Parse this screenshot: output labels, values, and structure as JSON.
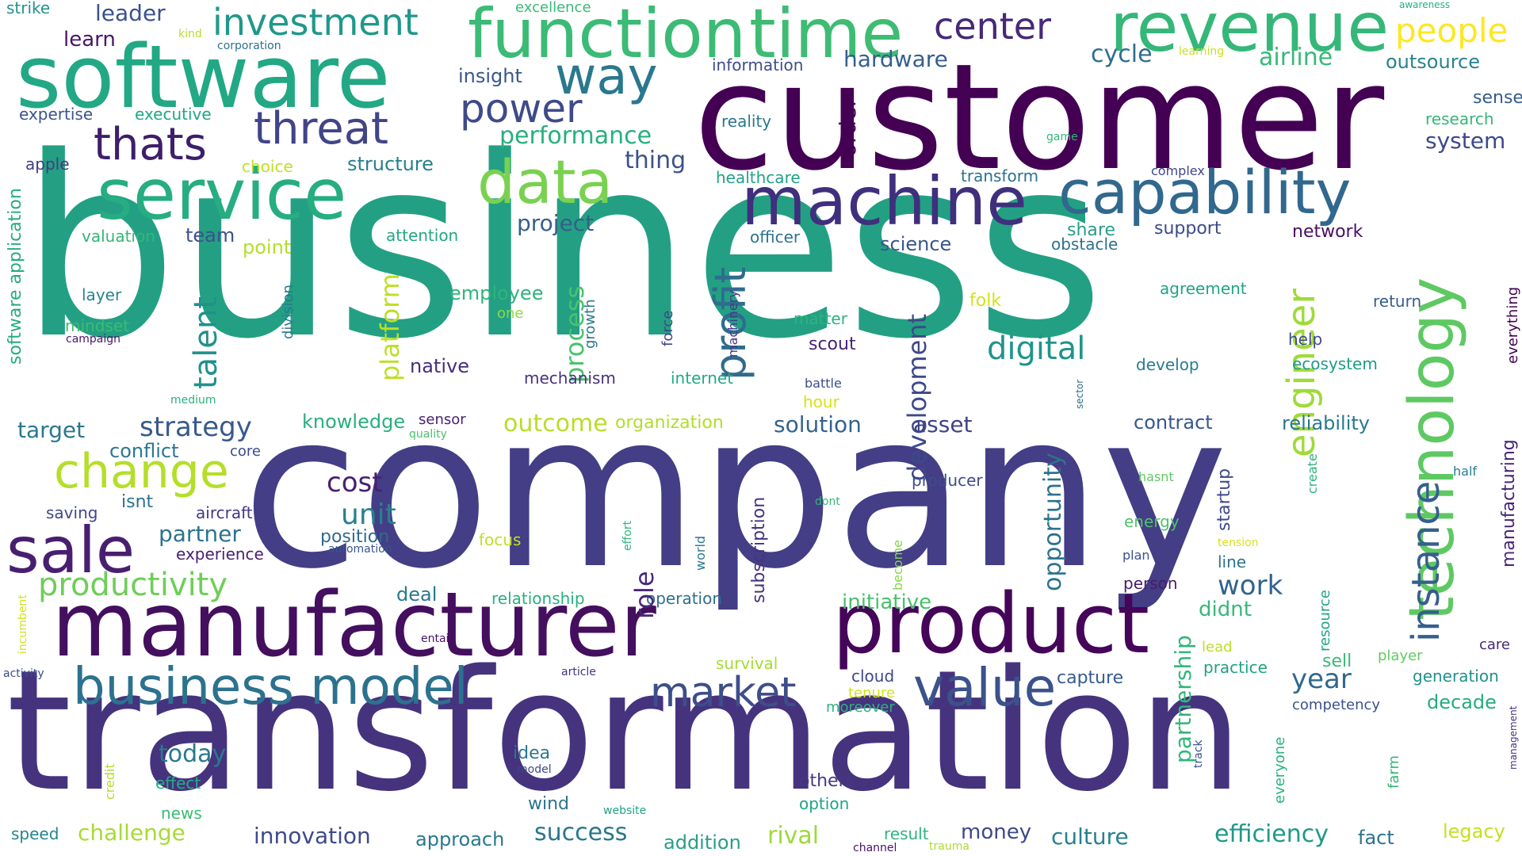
{
  "words": [
    {
      "text": "business",
      "color": "#23a083"
    },
    {
      "text": "company",
      "color": "#433e85"
    },
    {
      "text": "transformation",
      "color": "#46337e"
    },
    {
      "text": "customer",
      "color": "#440154"
    },
    {
      "text": "software",
      "color": "#22a884"
    },
    {
      "text": "function",
      "color": "#3bbb75"
    },
    {
      "text": "time",
      "color": "#3fbc73"
    },
    {
      "text": "revenue",
      "color": "#35b779"
    },
    {
      "text": "manufacturer",
      "color": "#440f5e"
    },
    {
      "text": "product",
      "color": "#450559"
    },
    {
      "text": "technology",
      "color": "#5ec962"
    },
    {
      "text": "machine",
      "color": "#3f2f7d"
    },
    {
      "text": "service",
      "color": "#26ad81"
    },
    {
      "text": "data",
      "color": "#7ad151"
    },
    {
      "text": "capability",
      "color": "#31688e"
    },
    {
      "text": "business model",
      "color": "#2c728e"
    },
    {
      "text": "value",
      "color": "#3b528b"
    },
    {
      "text": "sale",
      "color": "#481f70"
    },
    {
      "text": "change",
      "color": "#b5de2b"
    },
    {
      "text": "thats",
      "color": "#3e1e6b"
    },
    {
      "text": "threat",
      "color": "#414487"
    },
    {
      "text": "way",
      "color": "#2a788e"
    },
    {
      "text": "power",
      "color": "#3e4a89"
    },
    {
      "text": "investment",
      "color": "#1f988b"
    },
    {
      "text": "center",
      "color": "#482878"
    },
    {
      "text": "people",
      "color": "#fde725"
    },
    {
      "text": "profit",
      "color": "#2f6c8e"
    },
    {
      "text": "engineer",
      "color": "#a0da39"
    },
    {
      "text": "instance",
      "color": "#355f8d"
    },
    {
      "text": "market",
      "color": "#3d4e8a"
    },
    {
      "text": "productivity",
      "color": "#6ece58"
    },
    {
      "text": "digital",
      "color": "#1f948c"
    },
    {
      "text": "talent",
      "color": "#21918c"
    },
    {
      "text": "platform",
      "color": "#bddf26"
    },
    {
      "text": "process",
      "color": "#4ac16d"
    },
    {
      "text": "development",
      "color": "#3f4889"
    },
    {
      "text": "strategy",
      "color": "#38598c"
    },
    {
      "text": "unit",
      "color": "#26818e"
    },
    {
      "text": "cost",
      "color": "#482071"
    },
    {
      "text": "outcome",
      "color": "#b8de29"
    },
    {
      "text": "opportunity",
      "color": "#2c728e"
    },
    {
      "text": "performance",
      "color": "#29af7f"
    },
    {
      "text": "thing",
      "color": "#3b528b"
    },
    {
      "text": "order",
      "color": "#440154"
    },
    {
      "text": "hardware",
      "color": "#34608d"
    },
    {
      "text": "cycle",
      "color": "#2e6e8e"
    },
    {
      "text": "airline",
      "color": "#38b977"
    },
    {
      "text": "outsource",
      "color": "#25848e"
    },
    {
      "text": "sense",
      "color": "#365c8d"
    },
    {
      "text": "research",
      "color": "#35b779"
    },
    {
      "text": "system",
      "color": "#3e4989"
    },
    {
      "text": "leader",
      "color": "#3b528b"
    },
    {
      "text": "learn",
      "color": "#481668"
    },
    {
      "text": "insight",
      "color": "#39568c"
    },
    {
      "text": "information",
      "color": "#3e4c8a"
    },
    {
      "text": "expertise",
      "color": "#3b528b"
    },
    {
      "text": "executive",
      "color": "#21a685"
    },
    {
      "text": "reality",
      "color": "#2a788e"
    },
    {
      "text": "structure",
      "color": "#26818e"
    },
    {
      "text": "choice",
      "color": "#c2df23"
    },
    {
      "text": "apple",
      "color": "#443a83"
    },
    {
      "text": "healthcare",
      "color": "#20a386"
    },
    {
      "text": "transform",
      "color": "#2c728e"
    },
    {
      "text": "complex",
      "color": "#404588"
    },
    {
      "text": "project",
      "color": "#355f8d"
    },
    {
      "text": "team",
      "color": "#3b528b"
    },
    {
      "text": "valuation",
      "color": "#34b679"
    },
    {
      "text": "attention",
      "color": "#22a884"
    },
    {
      "text": "point",
      "color": "#b5de2b"
    },
    {
      "text": "officer",
      "color": "#2c728e"
    },
    {
      "text": "science",
      "color": "#39568c"
    },
    {
      "text": "share",
      "color": "#2a9d8a"
    },
    {
      "text": "support",
      "color": "#3e4a89"
    },
    {
      "text": "network",
      "color": "#471063"
    },
    {
      "text": "obstacle",
      "color": "#2d708e"
    },
    {
      "text": "layer",
      "color": "#25858e"
    },
    {
      "text": "employee",
      "color": "#2fb47c"
    },
    {
      "text": "one",
      "color": "#8fd744"
    },
    {
      "text": "folk",
      "color": "#d2e21b"
    },
    {
      "text": "agreement",
      "color": "#20a486"
    },
    {
      "text": "return",
      "color": "#365d8d"
    },
    {
      "text": "mindset",
      "color": "#3bbb75"
    },
    {
      "text": "campaign",
      "color": "#48186a"
    },
    {
      "text": "growth",
      "color": "#2a788e"
    },
    {
      "text": "force",
      "color": "#404688"
    },
    {
      "text": "machinery",
      "color": "#443983"
    },
    {
      "text": "matter",
      "color": "#2db27d"
    },
    {
      "text": "scout",
      "color": "#482475"
    },
    {
      "text": "help",
      "color": "#3e4a89"
    },
    {
      "text": "ecosystem",
      "color": "#1e9b8a"
    },
    {
      "text": "native",
      "color": "#472d7b"
    },
    {
      "text": "mechanism",
      "color": "#46327e"
    },
    {
      "text": "internet",
      "color": "#23a983"
    },
    {
      "text": "develop",
      "color": "#287c8e"
    },
    {
      "text": "battle",
      "color": "#3d4e8a"
    },
    {
      "text": "hour",
      "color": "#d5e21a"
    },
    {
      "text": "medium",
      "color": "#2db27d"
    },
    {
      "text": "target",
      "color": "#2a788e"
    },
    {
      "text": "knowledge",
      "color": "#29af7f"
    },
    {
      "text": "sensor",
      "color": "#482173"
    },
    {
      "text": "quality",
      "color": "#4ac16d"
    },
    {
      "text": "organization",
      "color": "#b2dd2d"
    },
    {
      "text": "solution",
      "color": "#33638d"
    },
    {
      "text": "asset",
      "color": "#414487"
    },
    {
      "text": "contract",
      "color": "#39568c"
    },
    {
      "text": "reliability",
      "color": "#2a788e"
    },
    {
      "text": "conflict",
      "color": "#2a788e"
    },
    {
      "text": "core",
      "color": "#3e4a89"
    },
    {
      "text": "producer",
      "color": "#3d4d8a"
    },
    {
      "text": "hasnt",
      "color": "#5ec962"
    },
    {
      "text": "half",
      "color": "#287d8e"
    },
    {
      "text": "isnt",
      "color": "#2c728e"
    },
    {
      "text": "saving",
      "color": "#3f4889"
    },
    {
      "text": "aircraft",
      "color": "#453781"
    },
    {
      "text": "dont",
      "color": "#35b779"
    },
    {
      "text": "energy",
      "color": "#4ec36b"
    },
    {
      "text": "partner",
      "color": "#2c738e"
    },
    {
      "text": "position",
      "color": "#306a8e"
    },
    {
      "text": "experience",
      "color": "#482071"
    },
    {
      "text": "automation",
      "color": "#39568c"
    },
    {
      "text": "focus",
      "color": "#c0df25"
    },
    {
      "text": "plan",
      "color": "#3b528b"
    },
    {
      "text": "tension",
      "color": "#d8e219"
    },
    {
      "text": "line",
      "color": "#2d718e"
    },
    {
      "text": "deal",
      "color": "#2a788e"
    },
    {
      "text": "relationship",
      "color": "#29af7f"
    },
    {
      "text": "operation",
      "color": "#2e6e8e"
    },
    {
      "text": "work",
      "color": "#33638d"
    },
    {
      "text": "person",
      "color": "#481c6e"
    },
    {
      "text": "didnt",
      "color": "#37b878"
    },
    {
      "text": "initiative",
      "color": "#4ac16d"
    },
    {
      "text": "entail",
      "color": "#481467"
    },
    {
      "text": "activity",
      "color": "#3d4d8a"
    },
    {
      "text": "article",
      "color": "#46327e"
    },
    {
      "text": "survival",
      "color": "#a5db36"
    },
    {
      "text": "cloud",
      "color": "#3f4889"
    },
    {
      "text": "tenure",
      "color": "#d2e21b"
    },
    {
      "text": "moreover",
      "color": "#2db27d"
    },
    {
      "text": "capture",
      "color": "#375b8d"
    },
    {
      "text": "lead",
      "color": "#bddf26"
    },
    {
      "text": "practice",
      "color": "#1fa187"
    },
    {
      "text": "sell",
      "color": "#3aba76"
    },
    {
      "text": "player",
      "color": "#63cb5f"
    },
    {
      "text": "care",
      "color": "#482878"
    },
    {
      "text": "generation",
      "color": "#21918c"
    },
    {
      "text": "year",
      "color": "#31688e"
    },
    {
      "text": "decade",
      "color": "#25ac82"
    },
    {
      "text": "competency",
      "color": "#3b528b"
    },
    {
      "text": "today",
      "color": "#2a788e"
    },
    {
      "text": "idea",
      "color": "#2a788e"
    },
    {
      "text": "model",
      "color": "#404688"
    },
    {
      "text": "effect",
      "color": "#26ad81"
    },
    {
      "text": "news",
      "color": "#3bbb75"
    },
    {
      "text": "challenge",
      "color": "#a8db34"
    },
    {
      "text": "speed",
      "color": "#25858e"
    },
    {
      "text": "wind",
      "color": "#2c728e"
    },
    {
      "text": "website",
      "color": "#20a386"
    },
    {
      "text": "others",
      "color": "#443983"
    },
    {
      "text": "option",
      "color": "#20a386"
    },
    {
      "text": "innovation",
      "color": "#3e4a89"
    },
    {
      "text": "approach",
      "color": "#2a788e"
    },
    {
      "text": "success",
      "color": "#2a768e"
    },
    {
      "text": "addition",
      "color": "#2a9d8a"
    },
    {
      "text": "rival",
      "color": "#9dd93b"
    },
    {
      "text": "channel",
      "color": "#471365"
    },
    {
      "text": "result",
      "color": "#2fb47c"
    },
    {
      "text": "trauma",
      "color": "#addc30"
    },
    {
      "text": "money",
      "color": "#3e4989"
    },
    {
      "text": "culture",
      "color": "#26818e"
    },
    {
      "text": "efficiency",
      "color": "#1f998a"
    },
    {
      "text": "fact",
      "color": "#2c728e"
    },
    {
      "text": "legacy",
      "color": "#c5e021"
    },
    {
      "text": "strike",
      "color": "#20928c"
    },
    {
      "text": "excellence",
      "color": "#38b977"
    },
    {
      "text": "kind",
      "color": "#b8de29"
    },
    {
      "text": "corporation",
      "color": "#2c718e"
    },
    {
      "text": "awareness",
      "color": "#29af7f"
    },
    {
      "text": "learning",
      "color": "#c8e020"
    },
    {
      "text": "game",
      "color": "#35b779"
    },
    {
      "text": "software application",
      "color": "#25ac82"
    },
    {
      "text": "division",
      "color": "#2a788e"
    },
    {
      "text": "incumbent",
      "color": "#d2e21b"
    },
    {
      "text": "credit",
      "color": "#b2dd2d"
    },
    {
      "text": "effort",
      "color": "#2fb47c"
    },
    {
      "text": "world",
      "color": "#2a788e"
    },
    {
      "text": "become",
      "color": "#86d549"
    },
    {
      "text": "subscription",
      "color": "#46337e"
    },
    {
      "text": "role",
      "color": "#482878"
    },
    {
      "text": "sector",
      "color": "#2f6c8e"
    },
    {
      "text": "create",
      "color": "#2db27d"
    },
    {
      "text": "startup",
      "color": "#3e4a89"
    },
    {
      "text": "partnership",
      "color": "#32b67a"
    },
    {
      "text": "resource",
      "color": "#20a386"
    },
    {
      "text": "everyone",
      "color": "#2db27d"
    },
    {
      "text": "track",
      "color": "#3b528b"
    },
    {
      "text": "farm",
      "color": "#35b779"
    },
    {
      "text": "manufacturing",
      "color": "#482576"
    },
    {
      "text": "everything",
      "color": "#440154"
    },
    {
      "text": "management",
      "color": "#46307e"
    }
  ]
}
